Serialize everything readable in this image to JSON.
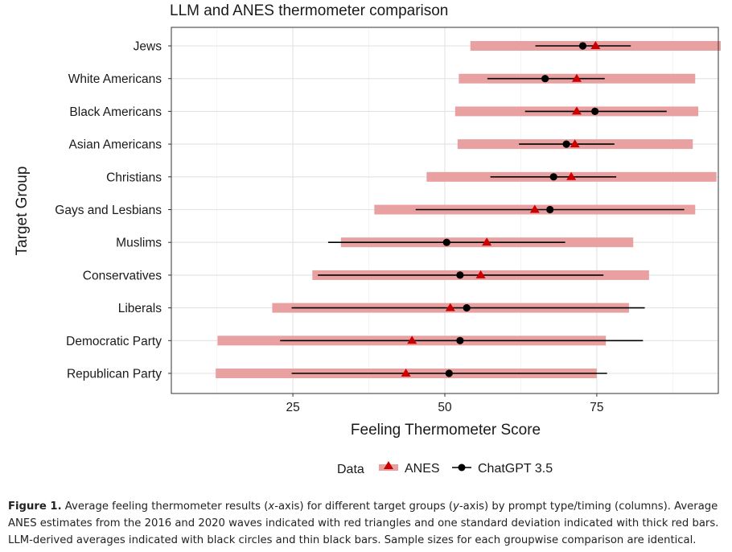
{
  "chart_data": {
    "type": "scatter",
    "title": "LLM and ANES thermometer comparison",
    "xlabel": "Feeling Thermometer Score",
    "ylabel": "Target Group",
    "xlim": [
      5,
      95
    ],
    "xticks": [
      25,
      50,
      75
    ],
    "grid": true,
    "legend_title": "Data",
    "legend_position": "bottom",
    "categories": [
      "Jews",
      "White Americans",
      "Black Americans",
      "Asian Americans",
      "Christians",
      "Gays and Lesbians",
      "Muslims",
      "Conservatives",
      "Liberals",
      "Democratic Party",
      "Republican Party"
    ],
    "series": [
      {
        "name": "ANES",
        "color": "#cc0000",
        "band_color": "#e8a0a0",
        "marker": "triangle",
        "mean": [
          74.8,
          71.7,
          71.7,
          71.4,
          70.8,
          64.8,
          56.9,
          55.9,
          50.9,
          44.6,
          43.6
        ],
        "low": [
          54.2,
          52.3,
          51.7,
          52.1,
          47.0,
          38.4,
          32.9,
          28.2,
          21.6,
          12.6,
          12.3
        ],
        "high": [
          95.4,
          91.2,
          91.7,
          90.8,
          94.7,
          91.2,
          81.0,
          83.6,
          80.3,
          76.5,
          75.0
        ]
      },
      {
        "name": "ChatGPT 3.5",
        "color": "#000000",
        "marker": "circle",
        "mean": [
          72.7,
          66.5,
          74.7,
          70.0,
          67.9,
          67.3,
          50.3,
          52.5,
          53.6,
          52.5,
          50.7
        ],
        "low": [
          64.9,
          57.0,
          63.2,
          62.2,
          57.5,
          45.2,
          30.8,
          29.1,
          24.8,
          22.9,
          24.8
        ],
        "high": [
          80.6,
          76.3,
          86.5,
          77.9,
          78.2,
          89.4,
          69.8,
          76.1,
          82.9,
          82.6,
          76.7
        ]
      }
    ]
  },
  "caption": {
    "label": "Figure 1.",
    "text_1": " Average feeling thermometer results (",
    "x_em": "x",
    "text_2": "-axis) for different target groups (",
    "y_em": "y",
    "text_3": "-axis) by prompt type/timing (columns). Average ANES estimates from the 2016 and 2020 waves indicated with red triangles and one standard deviation indicated with thick red bars. LLM-derived averages indicated with black circles and thin black bars. Sample sizes for each groupwise comparison are identical."
  }
}
